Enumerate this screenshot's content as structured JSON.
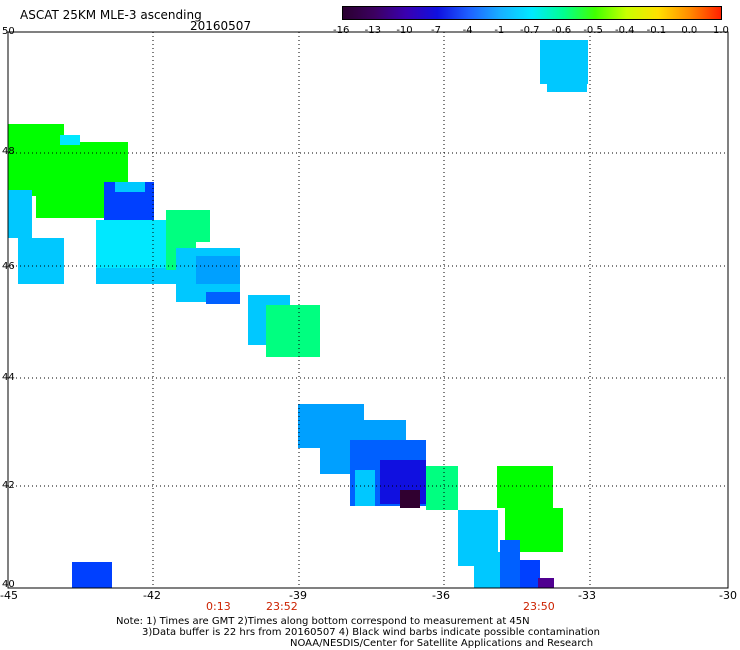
{
  "header": {
    "title": "ASCAT 25KM MLE-3 ascending",
    "date": "20160507"
  },
  "colorbar": {
    "labels": [
      "-16",
      "-13",
      "-10",
      "-7",
      "-4",
      "-1",
      "-0.7",
      "-0.6",
      "-0.5",
      "-0.4",
      "-0.1",
      "0.0",
      "1.0"
    ],
    "colors": [
      "#2a0030",
      "#3c0060",
      "#3a00b0",
      "#1010e0",
      "#1e60ff",
      "#18b0ff",
      "#00eaff",
      "#00ff90",
      "#40ff00",
      "#c8ff00",
      "#ffe000",
      "#ff8c00",
      "#ff2000"
    ]
  },
  "axes": {
    "x_ticks": [
      "-45",
      "-42",
      "-39",
      "-36",
      "-33",
      "-30"
    ],
    "y_ticks": [
      "50",
      "48",
      "46",
      "44",
      "42",
      "40"
    ]
  },
  "times": [
    "0:13",
    "23:52",
    "23:50"
  ],
  "notes": {
    "line1": "Note: 1) Times are GMT  2)Times along bottom correspond to measurement at 45N",
    "line2": "3)Data buffer is 22 hrs from 20160507  4) Black wind barbs indicate possible contamination",
    "line3": "NOAA/NESDIS/Center for Satellite Applications and Research"
  },
  "palette": {
    "green": "#00ff00",
    "bright_green": "#00ff40",
    "aqua_green": "#00ff80",
    "cyan": "#00e8ff",
    "sky": "#00c8ff",
    "light_blue": "#00a0ff",
    "blue": "#0060ff",
    "royal": "#0040ff",
    "deep_blue": "#1010e0",
    "indigo": "#3000c0",
    "purple": "#500090",
    "dark": "#300030"
  }
}
